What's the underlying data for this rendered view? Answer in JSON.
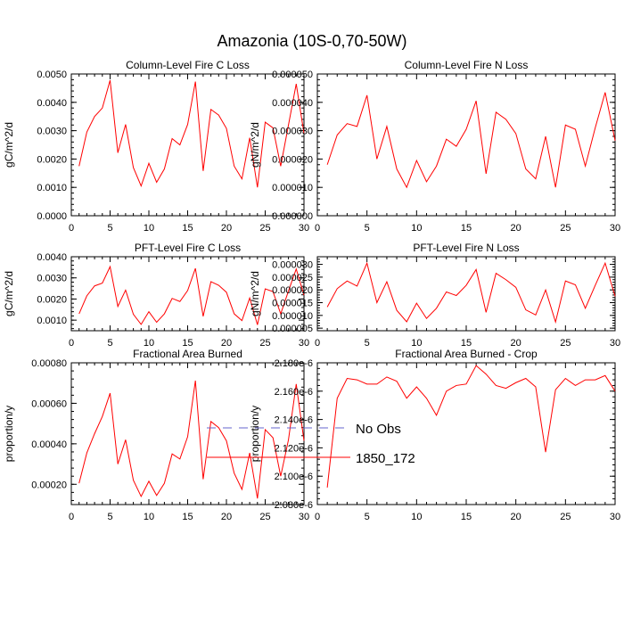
{
  "page_title": "Amazonia (10S-0,70-50W)",
  "colors": {
    "series": "#ff0000",
    "obs": "#6666cc",
    "axis": "#000000"
  },
  "legend": {
    "items": [
      {
        "label": "No Obs",
        "style": "dashed"
      },
      {
        "label": "1850_172",
        "style": "solid"
      }
    ]
  },
  "chart_data": [
    {
      "type": "line",
      "title": "Column-Level Fire C Loss",
      "ylabel": "gC/m^2/d",
      "xlim": [
        0,
        30
      ],
      "ylim": [
        0,
        0.005
      ],
      "xticks": [
        0,
        5,
        10,
        15,
        20,
        25,
        30
      ],
      "xticklabels": [
        "0",
        "5",
        "10",
        "15",
        "20",
        "25",
        "30"
      ],
      "yticks": [
        0,
        0.001,
        0.002,
        0.003,
        0.004,
        0.005
      ],
      "yticklabels": [
        "0.0000",
        "0.0010",
        "0.0020",
        "0.0030",
        "0.0040",
        "0.0050"
      ],
      "series": [
        {
          "name": "1850_172",
          "x": [
            1,
            2,
            3,
            4,
            5,
            6,
            7,
            8,
            9,
            10,
            11,
            12,
            13,
            14,
            15,
            16,
            17,
            18,
            19,
            20,
            21,
            22,
            23,
            24,
            25,
            26,
            27,
            28,
            29,
            30
          ],
          "values": [
            0.00175,
            0.00295,
            0.0035,
            0.0038,
            0.00478,
            0.00222,
            0.00322,
            0.0017,
            0.00105,
            0.00185,
            0.00118,
            0.00165,
            0.00272,
            0.0025,
            0.00322,
            0.00473,
            0.00158,
            0.00375,
            0.00355,
            0.00308,
            0.00175,
            0.0013,
            0.00275,
            0.001,
            0.0033,
            0.0031,
            0.00175,
            0.0032,
            0.00465,
            0.0029
          ]
        }
      ]
    },
    {
      "type": "line",
      "title": "Column-Level Fire N Loss",
      "ylabel": "gN/m^2/d",
      "xlim": [
        0,
        30
      ],
      "ylim": [
        0,
        5e-05
      ],
      "xticks": [
        0,
        5,
        10,
        15,
        20,
        25,
        30
      ],
      "xticklabels": [
        "0",
        "5",
        "10",
        "15",
        "20",
        "25",
        "30"
      ],
      "yticks": [
        0,
        1e-05,
        2e-05,
        3e-05,
        4e-05,
        5e-05
      ],
      "yticklabels": [
        "0.000000",
        "0.000010",
        "0.000020",
        "0.000030",
        "0.000040",
        "0.000050"
      ],
      "series": [
        {
          "name": "1850_172",
          "x": [
            1,
            2,
            3,
            4,
            5,
            6,
            7,
            8,
            9,
            10,
            11,
            12,
            13,
            14,
            15,
            16,
            17,
            18,
            19,
            20,
            21,
            22,
            23,
            24,
            25,
            26,
            27,
            28,
            29,
            30
          ],
          "values": [
            1.8e-05,
            2.85e-05,
            3.25e-05,
            3.15e-05,
            4.25e-05,
            2e-05,
            3.15e-05,
            1.65e-05,
            1e-05,
            1.95e-05,
            1.2e-05,
            1.75e-05,
            2.7e-05,
            2.45e-05,
            3.05e-05,
            4.05e-05,
            1.48e-05,
            3.65e-05,
            3.4e-05,
            2.9e-05,
            1.65e-05,
            1.3e-05,
            2.8e-05,
            1e-05,
            3.2e-05,
            3.05e-05,
            1.75e-05,
            3.1e-05,
            4.35e-05,
            2.65e-05
          ]
        }
      ]
    },
    {
      "type": "line",
      "title": "PFT-Level Fire C Loss",
      "ylabel": "gC/m^2/d",
      "xlim": [
        0,
        30
      ],
      "ylim": [
        0.0005,
        0.004
      ],
      "xticks": [
        0,
        5,
        10,
        15,
        20,
        25,
        30
      ],
      "xticklabels": [
        "0",
        "5",
        "10",
        "15",
        "20",
        "25",
        "30"
      ],
      "yticks": [
        0.001,
        0.002,
        0.003,
        0.004
      ],
      "yticklabels": [
        "0.0010",
        "0.0020",
        "0.0030",
        "0.0040"
      ],
      "series": [
        {
          "name": "1850_172",
          "x": [
            1,
            2,
            3,
            4,
            5,
            6,
            7,
            8,
            9,
            10,
            11,
            12,
            13,
            14,
            15,
            16,
            17,
            18,
            19,
            20,
            21,
            22,
            23,
            24,
            25,
            26,
            27,
            28,
            29,
            30
          ],
          "values": [
            0.0013,
            0.00215,
            0.00262,
            0.00275,
            0.00353,
            0.00165,
            0.00242,
            0.00128,
            0.0008,
            0.0014,
            0.0009,
            0.0013,
            0.00203,
            0.00188,
            0.0024,
            0.00345,
            0.00118,
            0.00282,
            0.00265,
            0.00232,
            0.0013,
            0.00098,
            0.00205,
            0.00078,
            0.00248,
            0.00235,
            0.0013,
            0.00238,
            0.00342,
            0.00218
          ]
        }
      ]
    },
    {
      "type": "line",
      "title": "PFT-Level Fire N Loss",
      "ylabel": "gN/m^2/d",
      "xlim": [
        0,
        30
      ],
      "ylim": [
        4e-06,
        3.3e-05
      ],
      "xticks": [
        0,
        5,
        10,
        15,
        20,
        25,
        30
      ],
      "xticklabels": [
        "0",
        "5",
        "10",
        "15",
        "20",
        "25",
        "30"
      ],
      "yticks": [
        5e-06,
        1e-05,
        1.5e-05,
        2e-05,
        2.5e-05,
        3e-05
      ],
      "yticklabels": [
        "0.000005",
        "0.000010",
        "0.000015",
        "0.000020",
        "0.000025",
        "0.000030"
      ],
      "series": [
        {
          "name": "1850_172",
          "x": [
            1,
            2,
            3,
            4,
            5,
            6,
            7,
            8,
            9,
            10,
            11,
            12,
            13,
            14,
            15,
            16,
            17,
            18,
            19,
            20,
            21,
            22,
            23,
            24,
            25,
            26,
            27,
            28,
            29,
            30
          ],
          "values": [
            1.33e-05,
            2.05e-05,
            2.35e-05,
            2.15e-05,
            3.05e-05,
            1.5e-05,
            2.32e-05,
            1.2e-05,
            7.5e-06,
            1.48e-05,
            8.8e-06,
            1.28e-05,
            1.92e-05,
            1.78e-05,
            2.18e-05,
            2.8e-05,
            1.12e-05,
            2.65e-05,
            2.4e-05,
            2.1e-05,
            1.22e-05,
            1.02e-05,
            2e-05,
            7.4e-06,
            2.35e-05,
            2.2e-05,
            1.28e-05,
            2.18e-05,
            3.05e-05,
            1.75e-05
          ]
        }
      ]
    },
    {
      "type": "line",
      "title": "Fractional Area Burned",
      "ylabel": "proportion/y",
      "xlim": [
        0,
        30
      ],
      "ylim": [
        0.0001,
        0.0008
      ],
      "xticks": [
        0,
        5,
        10,
        15,
        20,
        25,
        30
      ],
      "xticklabels": [
        "0",
        "5",
        "10",
        "15",
        "20",
        "25",
        "30"
      ],
      "yticks": [
        0.0002,
        0.0004,
        0.0006,
        0.0008
      ],
      "yticklabels": [
        "0.00020",
        "0.00040",
        "0.00060",
        "0.00080"
      ],
      "series": [
        {
          "name": "1850_172",
          "x": [
            1,
            2,
            3,
            4,
            5,
            6,
            7,
            8,
            9,
            10,
            11,
            12,
            13,
            14,
            15,
            16,
            17,
            18,
            19,
            20,
            21,
            22,
            23,
            24,
            25,
            26,
            27,
            28,
            29,
            30
          ],
          "values": [
            0.000205,
            0.000355,
            0.00045,
            0.000535,
            0.00065,
            0.0003,
            0.00042,
            0.00022,
            0.00014,
            0.000215,
            0.000145,
            0.000205,
            0.00035,
            0.000325,
            0.000435,
            0.000712,
            0.000225,
            0.00051,
            0.00048,
            0.000415,
            0.000255,
            0.000175,
            0.000355,
            0.00013,
            0.00047,
            0.00043,
            0.00024,
            0.00042,
            0.000695,
            0.000415
          ]
        }
      ]
    },
    {
      "type": "line",
      "title": "Fractional Area Burned - Crop",
      "ylabel": "proportion/y",
      "xlim": [
        0,
        30
      ],
      "ylim": [
        2.08e-06,
        2.18e-06
      ],
      "xticks": [
        0,
        5,
        10,
        15,
        20,
        25,
        30
      ],
      "xticklabels": [
        "0",
        "5",
        "10",
        "15",
        "20",
        "25",
        "30"
      ],
      "yticks": [
        2.08e-06,
        2.1e-06,
        2.12e-06,
        2.14e-06,
        2.16e-06,
        2.18e-06
      ],
      "yticklabels": [
        "2.080e-6",
        "2.100e-6",
        "2.120e-6",
        "2.140e-6",
        "2.160e-6",
        "2.180e-6"
      ],
      "series": [
        {
          "name": "1850_172",
          "x": [
            1,
            2,
            3,
            4,
            5,
            6,
            7,
            8,
            9,
            10,
            11,
            12,
            13,
            14,
            15,
            16,
            17,
            18,
            19,
            20,
            21,
            22,
            23,
            24,
            25,
            26,
            27,
            28,
            29,
            30
          ],
          "values": [
            2.092e-06,
            2.155e-06,
            2.169e-06,
            2.168e-06,
            2.165e-06,
            2.165e-06,
            2.17e-06,
            2.167e-06,
            2.155e-06,
            2.163e-06,
            2.155e-06,
            2.143e-06,
            2.16e-06,
            2.164e-06,
            2.165e-06,
            2.178e-06,
            2.172e-06,
            2.164e-06,
            2.162e-06,
            2.166e-06,
            2.169e-06,
            2.163e-06,
            2.117e-06,
            2.161e-06,
            2.169e-06,
            2.164e-06,
            2.168e-06,
            2.168e-06,
            2.171e-06,
            2.16e-06
          ]
        }
      ]
    }
  ]
}
